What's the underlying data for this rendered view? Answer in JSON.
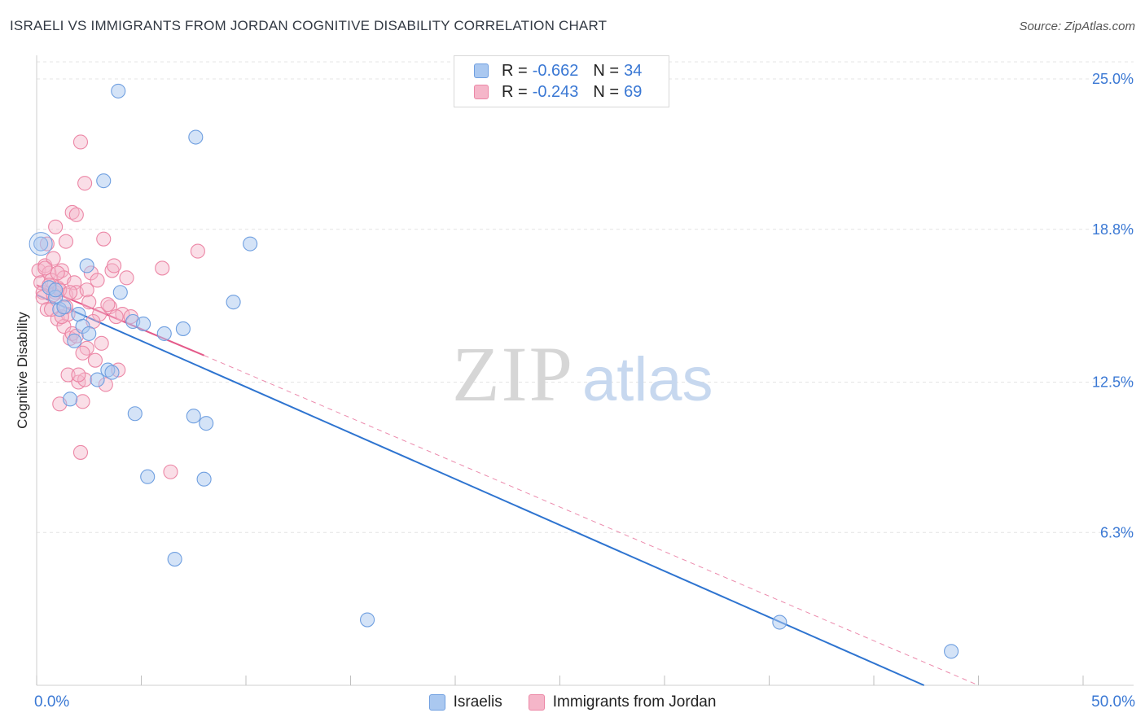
{
  "title": "ISRAELI VS IMMIGRANTS FROM JORDAN COGNITIVE DISABILITY CORRELATION CHART",
  "source": "Source: ZipAtlas.com",
  "watermark": {
    "zip": "ZIP",
    "atlas": "atlas"
  },
  "legend": {
    "rows": [
      {
        "r_label": "R =",
        "r_value": "-0.662",
        "n_label": "N =",
        "n_value": "34"
      },
      {
        "r_label": "R =",
        "r_value": "-0.243",
        "n_label": "N =",
        "n_value": "69"
      }
    ]
  },
  "colors": {
    "blue_fill": "#aac8f0",
    "blue_stroke": "#6f9fe0",
    "blue_line": "#2e74d0",
    "pink_fill": "#f5b6c9",
    "pink_stroke": "#ec87a6",
    "pink_line": "#e45a8a",
    "grid": "#e4e4e4",
    "tick_label": "#3a78d4"
  },
  "chart_data": {
    "type": "scatter",
    "title": "ISRAELI VS IMMIGRANTS FROM JORDAN COGNITIVE DISABILITY CORRELATION CHART",
    "xlabel": "",
    "ylabel": "Cognitive Disability",
    "xlim": [
      0,
      50
    ],
    "ylim": [
      0,
      26.4
    ],
    "x_tick_labels": [
      "0.0%",
      "50.0%"
    ],
    "y_ticks": [
      {
        "value": 6.3,
        "label": "6.3%"
      },
      {
        "value": 12.5,
        "label": "12.5%"
      },
      {
        "value": 18.8,
        "label": "18.8%"
      },
      {
        "value": 25.0,
        "label": "25.0%"
      }
    ],
    "grid": true,
    "series": [
      {
        "name": "Israelis",
        "color": "blue",
        "r": -0.662,
        "n": 34,
        "trend": {
          "x0": 0.0,
          "y0": 16.1,
          "x1": 42.4,
          "y1": 0.0,
          "style": "solid"
        },
        "points": [
          [
            0.2,
            18.2
          ],
          [
            0.6,
            16.4
          ],
          [
            0.9,
            16.0
          ],
          [
            1.1,
            15.5
          ],
          [
            1.6,
            11.8
          ],
          [
            1.8,
            14.2
          ],
          [
            2.0,
            15.3
          ],
          [
            2.2,
            14.8
          ],
          [
            2.5,
            14.5
          ],
          [
            2.4,
            17.3
          ],
          [
            2.9,
            12.6
          ],
          [
            3.2,
            20.8
          ],
          [
            3.4,
            13.0
          ],
          [
            3.6,
            12.9
          ],
          [
            3.9,
            24.5
          ],
          [
            4.0,
            16.2
          ],
          [
            4.6,
            15.0
          ],
          [
            4.7,
            11.2
          ],
          [
            5.1,
            14.9
          ],
          [
            5.3,
            8.6
          ],
          [
            6.1,
            14.5
          ],
          [
            6.6,
            5.2
          ],
          [
            7.0,
            14.7
          ],
          [
            7.5,
            11.1
          ],
          [
            7.6,
            22.6
          ],
          [
            8.0,
            8.5
          ],
          [
            8.1,
            10.8
          ],
          [
            9.4,
            15.8
          ],
          [
            10.2,
            18.2
          ],
          [
            15.8,
            2.7
          ],
          [
            35.5,
            2.6
          ],
          [
            43.7,
            1.4
          ],
          [
            1.3,
            15.6
          ],
          [
            0.9,
            16.3
          ]
        ]
      },
      {
        "name": "Immigrants from Jordan",
        "color": "pink",
        "r": -0.243,
        "n": 69,
        "trend": {
          "x0": 0.0,
          "y0": 16.5,
          "x1": 8.0,
          "y1": 13.6,
          "style": "solid"
        },
        "trend_extension": {
          "x0": 8.0,
          "y0": 13.6,
          "x1": 45.0,
          "y1": 0.0,
          "style": "dashed"
        },
        "points": [
          [
            0.1,
            17.1
          ],
          [
            0.2,
            16.6
          ],
          [
            0.3,
            16.2
          ],
          [
            0.4,
            17.3
          ],
          [
            0.5,
            18.2
          ],
          [
            0.5,
            15.5
          ],
          [
            0.6,
            17.0
          ],
          [
            0.7,
            16.7
          ],
          [
            0.8,
            17.6
          ],
          [
            0.9,
            18.9
          ],
          [
            0.9,
            16.2
          ],
          [
            1.0,
            15.1
          ],
          [
            1.0,
            16.4
          ],
          [
            1.1,
            11.6
          ],
          [
            1.2,
            17.1
          ],
          [
            1.3,
            16.8
          ],
          [
            1.3,
            14.8
          ],
          [
            1.4,
            18.3
          ],
          [
            1.4,
            16.1
          ],
          [
            1.5,
            12.8
          ],
          [
            1.5,
            15.3
          ],
          [
            1.6,
            14.3
          ],
          [
            1.7,
            19.5
          ],
          [
            1.8,
            16.6
          ],
          [
            1.9,
            16.2
          ],
          [
            1.9,
            19.4
          ],
          [
            2.0,
            12.5
          ],
          [
            2.1,
            22.4
          ],
          [
            2.1,
            9.6
          ],
          [
            2.2,
            11.7
          ],
          [
            2.3,
            20.7
          ],
          [
            2.3,
            12.6
          ],
          [
            2.4,
            16.3
          ],
          [
            2.5,
            15.8
          ],
          [
            2.6,
            17.0
          ],
          [
            2.8,
            13.4
          ],
          [
            2.9,
            16.7
          ],
          [
            3.0,
            15.3
          ],
          [
            3.1,
            14.1
          ],
          [
            3.2,
            18.4
          ],
          [
            3.3,
            12.4
          ],
          [
            3.5,
            15.6
          ],
          [
            3.6,
            17.1
          ],
          [
            3.9,
            13.0
          ],
          [
            4.1,
            15.3
          ],
          [
            4.3,
            16.8
          ],
          [
            4.5,
            15.2
          ],
          [
            6.0,
            17.2
          ],
          [
            6.4,
            8.8
          ],
          [
            7.7,
            17.9
          ],
          [
            0.3,
            16.0
          ],
          [
            0.6,
            16.5
          ],
          [
            0.8,
            16.1
          ],
          [
            1.0,
            17.0
          ],
          [
            1.2,
            15.2
          ],
          [
            1.7,
            14.5
          ],
          [
            2.4,
            13.9
          ],
          [
            2.7,
            15.0
          ],
          [
            3.4,
            15.7
          ],
          [
            3.7,
            17.3
          ],
          [
            1.1,
            16.3
          ],
          [
            1.9,
            14.4
          ],
          [
            2.2,
            13.7
          ],
          [
            1.4,
            15.6
          ],
          [
            0.7,
            15.5
          ],
          [
            2.0,
            12.8
          ],
          [
            1.6,
            16.2
          ],
          [
            0.4,
            17.2
          ],
          [
            3.8,
            15.2
          ]
        ]
      }
    ],
    "legend_position": "top-center"
  }
}
